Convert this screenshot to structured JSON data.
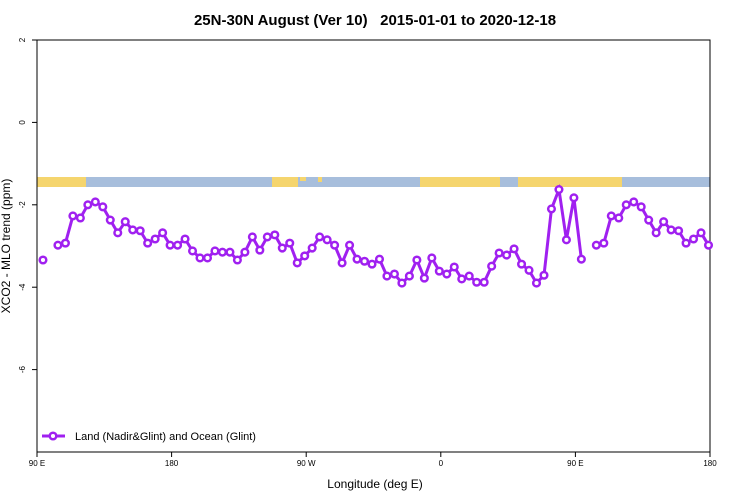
{
  "chart_data": {
    "type": "line",
    "title": "25N-30N August (Ver 10)   2015-01-01 to 2020-12-18",
    "x_label": "Longitude (deg E)",
    "y_label": "XCO2 - MLO trend (ppm)",
    "xlim": [
      90,
      540
    ],
    "ylim": [
      -8,
      2
    ],
    "xticks": [
      {
        "value": 90,
        "label": "90 E"
      },
      180,
      {
        "value": 270,
        "label": "90 W"
      },
      {
        "value": 360,
        "label": "0"
      },
      {
        "value": 450,
        "label": "90 E"
      },
      {
        "value": 540,
        "label": "180"
      }
    ],
    "yticks": [
      2,
      0,
      -2,
      -4,
      -6
    ],
    "legend": "bottom-left",
    "x": [
      94,
      99,
      104,
      109,
      114,
      119,
      124,
      129,
      134,
      139,
      144,
      149,
      154,
      159,
      164,
      169,
      174,
      179,
      184,
      189,
      194,
      199,
      204,
      209,
      214,
      219,
      224,
      229,
      234,
      239,
      244,
      249,
      254,
      259,
      264,
      269,
      274,
      279,
      284,
      289,
      294,
      299,
      304,
      309,
      314,
      319,
      324,
      329,
      334,
      339,
      344,
      349,
      354,
      359,
      364,
      369,
      374,
      379,
      384,
      389,
      394,
      399,
      404,
      409,
      414,
      419,
      424,
      429,
      434,
      439,
      444,
      449,
      454,
      459,
      464,
      469,
      474,
      479,
      484,
      489,
      494,
      499,
      504,
      509,
      514,
      519,
      524,
      529,
      534,
      539
    ],
    "series": [
      {
        "name": "Land (Nadir&Glint) and Ocean (Glint)",
        "color": "#a020f0",
        "values": [
          -3.34,
          null,
          -2.98,
          -2.93,
          -2.27,
          -2.32,
          -2.0,
          -1.93,
          -2.05,
          -2.37,
          -2.68,
          -2.41,
          -2.61,
          -2.63,
          -2.93,
          -2.83,
          -2.68,
          -2.98,
          -2.98,
          -2.83,
          -3.12,
          -3.29,
          -3.29,
          -3.12,
          -3.15,
          -3.15,
          -3.34,
          -3.15,
          -2.78,
          -3.1,
          -2.78,
          -2.73,
          -3.05,
          -2.93,
          -3.41,
          -3.24,
          -3.05,
          -2.78,
          -2.85,
          -2.98,
          -3.41,
          -2.98,
          -3.32,
          -3.37,
          -3.44,
          -3.32,
          -3.73,
          -3.68,
          -3.9,
          -3.73,
          -3.34,
          -3.78,
          -3.29,
          -3.61,
          -3.68,
          -3.51,
          -3.8,
          -3.73,
          -3.88,
          -3.88,
          -3.49,
          -3.17,
          -3.22,
          -3.07,
          -3.44,
          -3.59,
          -3.9,
          -3.71,
          -2.1,
          -1.63,
          -2.85,
          -1.83,
          -3.32,
          null,
          -2.98,
          -2.93,
          -2.27,
          -2.32,
          -2.0,
          -1.93,
          -2.05,
          -2.37,
          -2.68,
          -2.41,
          -2.61,
          -2.63,
          -2.93,
          -2.83,
          -2.68,
          -2.98
        ]
      }
    ]
  }
}
